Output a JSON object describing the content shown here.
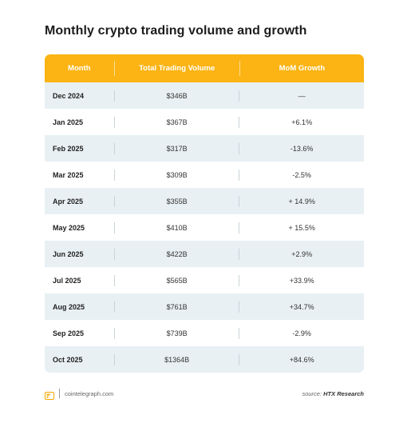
{
  "title": "Monthly crypto trading volume and growth",
  "table": {
    "headers": [
      "Month",
      "Total Trading Volume",
      "MoM Growth"
    ],
    "rows": [
      {
        "month": "Dec 2024",
        "volume": "$346B",
        "growth": "—"
      },
      {
        "month": "Jan 2025",
        "volume": "$367B",
        "growth": "+6.1%"
      },
      {
        "month": "Feb 2025",
        "volume": "$317B",
        "growth": "-13.6%"
      },
      {
        "month": "Mar 2025",
        "volume": "$309B",
        "growth": "-2.5%"
      },
      {
        "month": "Apr 2025",
        "volume": "$355B",
        "growth": "+ 14.9%"
      },
      {
        "month": "May 2025",
        "volume": "$410B",
        "growth": "+ 15.5%"
      },
      {
        "month": "Jun 2025",
        "volume": "$422B",
        "growth": "+2.9%"
      },
      {
        "month": "Jul 2025",
        "volume": "$565B",
        "growth": "+33.9%"
      },
      {
        "month": "Aug 2025",
        "volume": "$761B",
        "growth": "+34.7%"
      },
      {
        "month": "Sep 2025",
        "volume": "$739B",
        "growth": "-2.9%"
      },
      {
        "month": "Oct 2025",
        "volume": "$1364B",
        "growth": "+84.6%"
      }
    ]
  },
  "footer": {
    "logo_icon": "cointelegraph-logo-icon",
    "site": "cointelegraph.com",
    "source_prefix": "source:",
    "source_name": "HTX Research"
  },
  "colors": {
    "header_bg": "#fbb414",
    "row_alt_bg": "#e8f0f3",
    "logo_accent": "#f2a900"
  }
}
